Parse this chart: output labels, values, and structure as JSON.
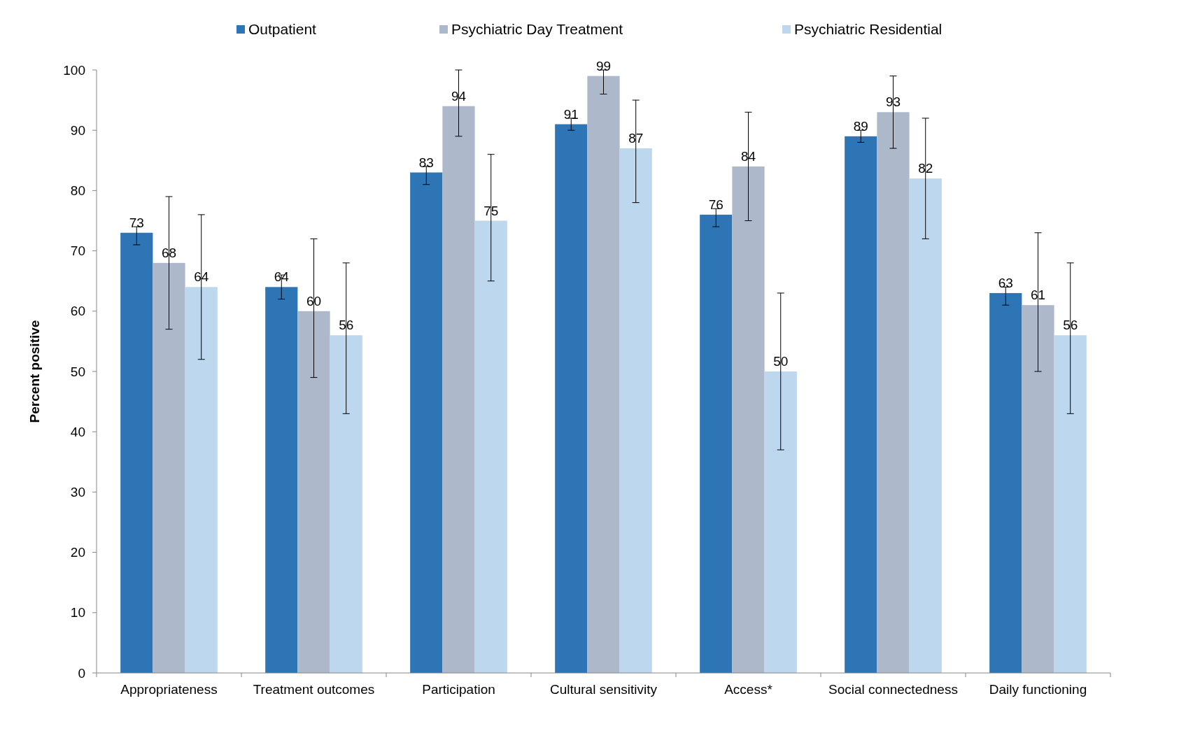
{
  "chart_data": {
    "type": "bar",
    "ylabel": "Percent positive",
    "categories": [
      "Appropriateness",
      "Treatment outcomes",
      "Participation",
      "Cultural sensitivity",
      "Access*",
      "Social connectedness",
      "Daily functioning"
    ],
    "series": [
      {
        "name": "Outpatient",
        "color": "#2e75b6",
        "values": [
          73,
          64,
          83,
          91,
          76,
          89,
          63
        ],
        "errors": [
          [
            71,
            74
          ],
          [
            62,
            66
          ],
          [
            81,
            84
          ],
          [
            90,
            92
          ],
          [
            74,
            77
          ],
          [
            88,
            90
          ],
          [
            61,
            64
          ]
        ]
      },
      {
        "name": "Psychiatric Day Treatment",
        "color": "#adb9ca",
        "values": [
          68,
          60,
          94,
          99,
          84,
          93,
          61
        ],
        "errors": [
          [
            57,
            79
          ],
          [
            49,
            72
          ],
          [
            89,
            100
          ],
          [
            96,
            100
          ],
          [
            75,
            93
          ],
          [
            87,
            99
          ],
          [
            50,
            73
          ]
        ]
      },
      {
        "name": "Psychiatric Residential",
        "color": "#bdd7ee",
        "values": [
          64,
          56,
          75,
          87,
          50,
          82,
          56
        ],
        "errors": [
          [
            52,
            76
          ],
          [
            43,
            68
          ],
          [
            65,
            86
          ],
          [
            78,
            95
          ],
          [
            37,
            63
          ],
          [
            72,
            92
          ],
          [
            43,
            68
          ]
        ]
      }
    ],
    "ylim": [
      0,
      100
    ],
    "yticks": [
      0,
      10,
      20,
      30,
      40,
      50,
      60,
      70,
      80,
      90,
      100
    ],
    "data_labels": true,
    "legend": "top",
    "grid": false
  }
}
